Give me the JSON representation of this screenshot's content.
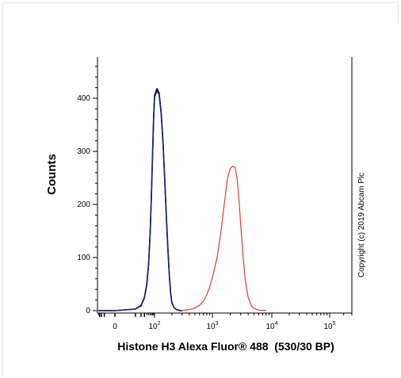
{
  "chart_data": {
    "type": "line",
    "title": "",
    "xlabel": "Histone H3 Alexa Fluor® 488  (530/30 BP)",
    "ylabel": "Counts",
    "xscale": "biexponential-log",
    "ylim": [
      0,
      480
    ],
    "yticks": [
      0,
      100,
      200,
      300,
      400
    ],
    "xticks": [
      {
        "value": 0,
        "base": "0",
        "exp": ""
      },
      {
        "value": 100,
        "base": "10",
        "exp": "2"
      },
      {
        "value": 1000,
        "base": "10",
        "exp": "3"
      },
      {
        "value": 10000,
        "base": "10",
        "exp": "4"
      },
      {
        "value": 100000,
        "base": "10",
        "exp": "5"
      }
    ],
    "series": [
      {
        "color": "#000000",
        "x": [
          -40,
          0,
          10,
          20,
          30,
          40,
          50,
          60,
          70,
          80,
          90,
          100,
          110,
          120,
          130,
          140,
          150,
          160,
          170,
          180,
          190,
          200,
          220,
          240,
          260,
          280,
          300
        ],
        "y": [
          0,
          0,
          3,
          10,
          25,
          50,
          90,
          150,
          225,
          300,
          365,
          405,
          418,
          410,
          375,
          320,
          250,
          180,
          120,
          70,
          35,
          15,
          5,
          2,
          1,
          0,
          0
        ]
      },
      {
        "color": "#1a237e",
        "x": [
          -40,
          0,
          10,
          20,
          30,
          40,
          50,
          60,
          70,
          80,
          90,
          100,
          110,
          120,
          130,
          140,
          150,
          160,
          170,
          180,
          190,
          200,
          220,
          240,
          260,
          280,
          300
        ],
        "y": [
          0,
          0,
          3,
          9,
          24,
          48,
          88,
          148,
          222,
          298,
          362,
          402,
          414,
          407,
          372,
          318,
          248,
          178,
          118,
          68,
          33,
          14,
          5,
          2,
          1,
          0,
          0
        ]
      },
      {
        "color": "#e53935",
        "x": [
          300,
          400,
          500,
          600,
          700,
          800,
          900,
          1000,
          1200,
          1400,
          1600,
          1800,
          2000,
          2200,
          2400,
          2600,
          2800,
          3000,
          3300,
          3600,
          4000,
          4500,
          5000,
          6000,
          8000
        ],
        "y": [
          0,
          2,
          5,
          10,
          18,
          30,
          45,
          62,
          100,
          150,
          205,
          250,
          268,
          272,
          270,
          250,
          210,
          160,
          100,
          55,
          25,
          10,
          4,
          1,
          0
        ]
      }
    ],
    "annotation": "Copyright (c) 2019 Abcam Plc"
  }
}
